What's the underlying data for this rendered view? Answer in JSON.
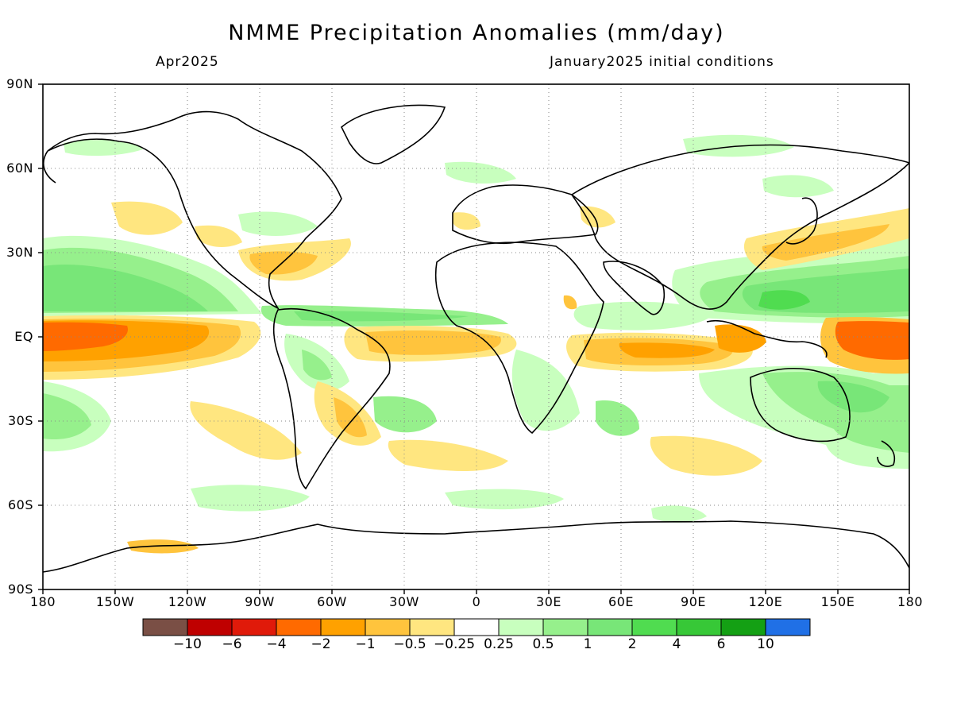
{
  "title": "NMME Precipitation Anomalies (mm/day)",
  "valid_month": "Apr2025",
  "initial_conditions": "January2025 initial conditions",
  "lat_labels": [
    "90N",
    "60N",
    "30N",
    "EQ",
    "30S",
    "60S",
    "90S"
  ],
  "lon_labels": [
    "180",
    "150W",
    "120W",
    "90W",
    "60W",
    "30W",
    "0",
    "30E",
    "60E",
    "90E",
    "120E",
    "150E",
    "180"
  ],
  "colorbar": {
    "colors": [
      "#7a4f45",
      "#bf0000",
      "#e01a0a",
      "#ff6a00",
      "#ffa100",
      "#ffc43d",
      "#ffe680",
      "#ffffff",
      "#c8ffbe",
      "#96f08c",
      "#78e678",
      "#50dc50",
      "#37c837",
      "#14a014",
      "#2070e6"
    ],
    "labels": [
      "−10",
      "−6",
      "−4",
      "−2",
      "−1",
      "−0.5",
      "−0.25",
      "0.25",
      "0.5",
      "1",
      "2",
      "4",
      "6",
      "10"
    ]
  }
}
